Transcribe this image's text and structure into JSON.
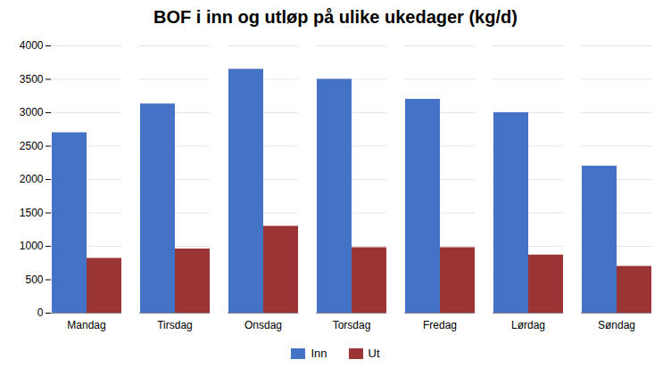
{
  "chart_data": {
    "type": "bar",
    "title": "BOF i inn og utløp på ulike ukedager (kg/d)",
    "categories": [
      "Mandag",
      "Tirsdag",
      "Onsdag",
      "Torsdag",
      "Fredag",
      "Lørdag",
      "Søndag"
    ],
    "series": [
      {
        "name": "Inn",
        "color": "#4472C4",
        "values": [
          2700,
          3130,
          3650,
          3500,
          3200,
          3000,
          2200
        ]
      },
      {
        "name": "Ut",
        "color": "#9B3535",
        "values": [
          820,
          960,
          1300,
          980,
          980,
          870,
          700
        ]
      }
    ],
    "ylim": [
      0,
      4000
    ],
    "yticks": [
      0,
      500,
      1000,
      1500,
      2000,
      2500,
      3000,
      3500,
      4000
    ],
    "grid": true,
    "legend": "bottom"
  }
}
